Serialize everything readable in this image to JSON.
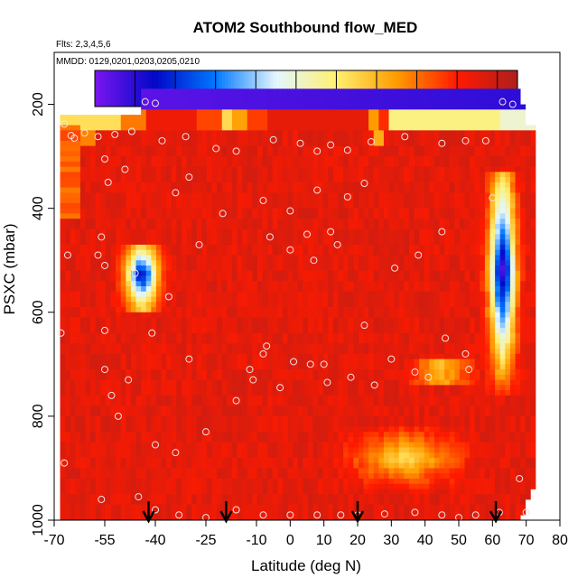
{
  "chart_data": {
    "type": "heatmap",
    "title": "ATOM2 Southbound flow_MED",
    "subtitle_flights": "Flts: 2,3,4,5,6",
    "subtitle_dates": "MMDD: 0129,0201,0203,0205,0210",
    "xlabel": "Latitude (deg N)",
    "ylabel": "PSXC (mbar)",
    "xlim": [
      -70,
      80
    ],
    "ylim": [
      1000,
      100
    ],
    "x_ticks": [
      -70,
      -55,
      -40,
      -25,
      -10,
      0,
      10,
      20,
      30,
      40,
      50,
      60,
      70,
      80
    ],
    "y_ticks": [
      200,
      400,
      600,
      800,
      1000
    ],
    "colorbar": {
      "range": [
        1300,
        2350
      ],
      "boundaries": [
        1300,
        1400,
        1500,
        1600,
        1700,
        1800,
        1900,
        2000,
        2100,
        2200,
        2300,
        2350
      ],
      "tick_values": [
        1400,
        1600,
        1800,
        2000,
        2200
      ],
      "colors": [
        "#7b16f0",
        "#0008c8",
        "#0078ff",
        "#e4f6ff",
        "#fff070",
        "#ff9c00",
        "#ff1a00",
        "#ae1f1c"
      ]
    },
    "arrows_latitude": [
      -42,
      -19,
      20,
      61
    ],
    "field_description": "flight-curtain field; background ~2250, upper band ~2000 near 230 mbar, low values aloft near 190 mbar, blue anomalies near -44 lat 520-590 mbar and 62-70 lat 350-720 mbar, yellow band 25-55 lat 820-940 mbar",
    "sample_points": [
      [
        -67,
        238
      ],
      [
        -65,
        260
      ],
      [
        -61,
        255
      ],
      [
        -57,
        262
      ],
      [
        -52,
        258
      ],
      [
        -47,
        252
      ],
      [
        -43,
        195
      ],
      [
        -40,
        198
      ],
      [
        -38,
        270
      ],
      [
        -31,
        262
      ],
      [
        -22,
        285
      ],
      [
        -16,
        290
      ],
      [
        -5,
        268
      ],
      [
        3,
        275
      ],
      [
        8,
        290
      ],
      [
        12,
        278
      ],
      [
        17,
        288
      ],
      [
        24,
        272
      ],
      [
        34,
        262
      ],
      [
        45,
        275
      ],
      [
        52,
        270
      ],
      [
        58,
        270
      ],
      [
        63,
        195
      ],
      [
        66,
        200
      ],
      [
        -64,
        265
      ],
      [
        -55,
        305
      ],
      [
        -54,
        350
      ],
      [
        -49,
        325
      ],
      [
        -34,
        370
      ],
      [
        -30,
        340
      ],
      [
        -20,
        410
      ],
      [
        -8,
        385
      ],
      [
        0,
        405
      ],
      [
        8,
        365
      ],
      [
        12,
        445
      ],
      [
        17,
        378
      ],
      [
        22,
        352
      ],
      [
        45,
        445
      ],
      [
        60,
        380
      ],
      [
        -66,
        490
      ],
      [
        -57,
        490
      ],
      [
        -56,
        455
      ],
      [
        -55,
        510
      ],
      [
        -46,
        525
      ],
      [
        -36,
        570
      ],
      [
        -27,
        470
      ],
      [
        -6,
        455
      ],
      [
        0,
        480
      ],
      [
        7,
        500
      ],
      [
        5,
        450
      ],
      [
        14,
        470
      ],
      [
        31,
        515
      ],
      [
        38,
        490
      ],
      [
        -55,
        635
      ],
      [
        -41,
        640
      ],
      [
        -30,
        690
      ],
      [
        -7,
        665
      ],
      [
        -8,
        680
      ],
      [
        -12,
        710
      ],
      [
        6,
        700
      ],
      [
        10,
        700
      ],
      [
        18,
        725
      ],
      [
        25,
        740
      ],
      [
        30,
        690
      ],
      [
        37,
        715
      ],
      [
        41,
        725
      ],
      [
        46,
        650
      ],
      [
        52,
        680
      ],
      [
        53,
        710
      ],
      [
        -68,
        640
      ],
      [
        -55,
        710
      ],
      [
        -53,
        760
      ],
      [
        -51,
        800
      ],
      [
        -48,
        730
      ],
      [
        -40,
        855
      ],
      [
        -34,
        870
      ],
      [
        -25,
        830
      ],
      [
        -16,
        770
      ],
      [
        -11,
        730
      ],
      [
        -3,
        745
      ],
      [
        1,
        695
      ],
      [
        11,
        735
      ],
      [
        22,
        625
      ],
      [
        -67,
        890
      ],
      [
        -56,
        960
      ],
      [
        -45,
        955
      ],
      [
        -40,
        980
      ],
      [
        -33,
        990
      ],
      [
        -25,
        995
      ],
      [
        -16,
        980
      ],
      [
        -8,
        990
      ],
      [
        0,
        990
      ],
      [
        8,
        990
      ],
      [
        15,
        990
      ],
      [
        20,
        990
      ],
      [
        28,
        988
      ],
      [
        37,
        985
      ],
      [
        45,
        990
      ],
      [
        50,
        995
      ],
      [
        55,
        990
      ],
      [
        62,
        985
      ],
      [
        68,
        920
      ],
      [
        70,
        985
      ]
    ]
  }
}
